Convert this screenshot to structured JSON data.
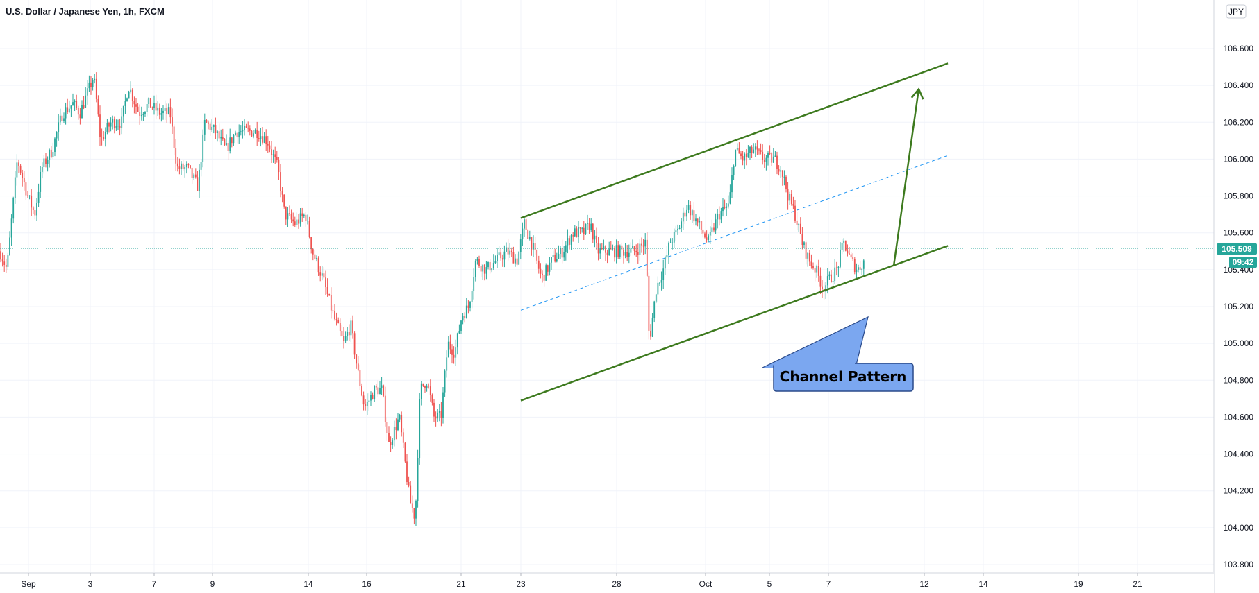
{
  "header": {
    "title": "U.S. Dollar / Japanese Yen, 1h, FXCM",
    "currency_button": "JPY"
  },
  "chart_data": {
    "type": "candlestick",
    "symbol": "USDJPY",
    "timeframe": "1h",
    "ylim": [
      103.76,
      106.73
    ],
    "grid": true,
    "y_ticks": [
      "106.600",
      "106.400",
      "106.200",
      "106.000",
      "105.800",
      "105.600",
      "105.400",
      "105.200",
      "105.000",
      "104.800",
      "104.600",
      "104.400",
      "104.200",
      "104.000",
      "103.800"
    ],
    "x_ticks": [
      "Sep",
      "3",
      "7",
      "9",
      "14",
      "16",
      "21",
      "23",
      "28",
      "Oct",
      "5",
      "7",
      "12",
      "14",
      "19",
      "21"
    ],
    "last_price": "105.509",
    "countdown": "09:42",
    "colors": {
      "up": "#26a69a",
      "down": "#ef5350",
      "channel": "#3d7a1e",
      "midline": "#2196f3",
      "callout_fill": "#7ba7f0",
      "price_badge": "#26a69a"
    },
    "price_path": [
      [
        0,
        105.5
      ],
      [
        10,
        105.4
      ],
      [
        25,
        106.0
      ],
      [
        40,
        105.8
      ],
      [
        50,
        105.7
      ],
      [
        60,
        105.95
      ],
      [
        75,
        106.05
      ],
      [
        90,
        106.25
      ],
      [
        105,
        106.3
      ],
      [
        115,
        106.25
      ],
      [
        125,
        106.35
      ],
      [
        135,
        106.45
      ],
      [
        145,
        106.1
      ],
      [
        160,
        106.2
      ],
      [
        175,
        106.2
      ],
      [
        185,
        106.4
      ],
      [
        200,
        106.25
      ],
      [
        215,
        106.3
      ],
      [
        230,
        106.25
      ],
      [
        245,
        106.25
      ],
      [
        255,
        105.95
      ],
      [
        270,
        105.95
      ],
      [
        285,
        105.85
      ],
      [
        295,
        106.2
      ],
      [
        310,
        106.15
      ],
      [
        325,
        106.05
      ],
      [
        340,
        106.15
      ],
      [
        355,
        106.15
      ],
      [
        370,
        106.15
      ],
      [
        385,
        106.1
      ],
      [
        400,
        105.95
      ],
      [
        410,
        105.7
      ],
      [
        425,
        105.65
      ],
      [
        440,
        105.7
      ],
      [
        450,
        105.5
      ],
      [
        465,
        105.35
      ],
      [
        480,
        105.15
      ],
      [
        495,
        105.0
      ],
      [
        505,
        105.1
      ],
      [
        515,
        104.85
      ],
      [
        525,
        104.65
      ],
      [
        540,
        104.75
      ],
      [
        550,
        104.75
      ],
      [
        560,
        104.45
      ],
      [
        575,
        104.6
      ],
      [
        590,
        104.15
      ],
      [
        598,
        104.05
      ],
      [
        605,
        104.75
      ],
      [
        615,
        104.8
      ],
      [
        625,
        104.6
      ],
      [
        635,
        104.6
      ],
      [
        645,
        105.0
      ],
      [
        655,
        104.95
      ],
      [
        665,
        105.15
      ],
      [
        675,
        105.2
      ],
      [
        685,
        105.45
      ],
      [
        700,
        105.4
      ],
      [
        715,
        105.45
      ],
      [
        730,
        105.5
      ],
      [
        745,
        105.45
      ],
      [
        755,
        105.65
      ],
      [
        765,
        105.55
      ],
      [
        780,
        105.35
      ],
      [
        795,
        105.45
      ],
      [
        810,
        105.5
      ],
      [
        825,
        105.6
      ],
      [
        840,
        105.6
      ],
      [
        850,
        105.65
      ],
      [
        860,
        105.5
      ],
      [
        870,
        105.5
      ],
      [
        885,
        105.5
      ],
      [
        900,
        105.5
      ],
      [
        915,
        105.5
      ],
      [
        930,
        105.55
      ],
      [
        935,
        105.0
      ],
      [
        945,
        105.3
      ],
      [
        955,
        105.4
      ],
      [
        965,
        105.55
      ],
      [
        975,
        105.6
      ],
      [
        990,
        105.75
      ],
      [
        1005,
        105.65
      ],
      [
        1020,
        105.55
      ],
      [
        1035,
        105.7
      ],
      [
        1050,
        105.75
      ],
      [
        1058,
        106.05
      ],
      [
        1070,
        106.0
      ],
      [
        1085,
        106.05
      ],
      [
        1100,
        106.0
      ],
      [
        1115,
        106.0
      ],
      [
        1125,
        105.95
      ],
      [
        1135,
        105.8
      ],
      [
        1145,
        105.7
      ],
      [
        1155,
        105.55
      ],
      [
        1165,
        105.45
      ],
      [
        1175,
        105.4
      ],
      [
        1185,
        105.3
      ],
      [
        1195,
        105.35
      ],
      [
        1205,
        105.4
      ],
      [
        1215,
        105.55
      ],
      [
        1225,
        105.45
      ],
      [
        1235,
        105.4
      ],
      [
        1245,
        105.45
      ]
    ],
    "annotations": {
      "channel_label": "Channel Pattern",
      "upper_line": [
        [
          750,
          105.68
        ],
        [
          1365,
          106.52
        ]
      ],
      "lower_line": [
        [
          750,
          104.69
        ],
        [
          1365,
          105.53
        ]
      ],
      "mid_line": [
        [
          750,
          105.18
        ],
        [
          1365,
          106.02
        ]
      ],
      "projection_arrow": [
        [
          1287,
          105.42
        ],
        [
          1323,
          106.38
        ]
      ]
    }
  }
}
